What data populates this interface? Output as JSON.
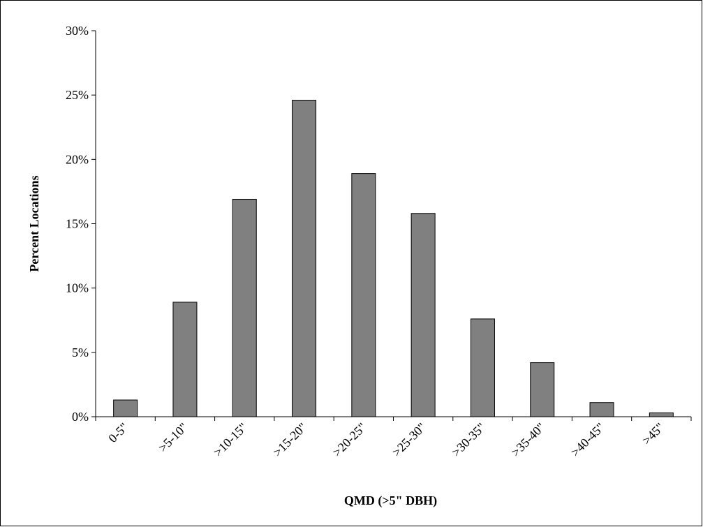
{
  "chart_data": {
    "type": "bar",
    "title": "",
    "xlabel": "QMD (>5\" DBH)",
    "ylabel": "Percent Locations",
    "categories": [
      "0-5\"",
      ">5-10\"",
      ">10-15\"",
      ">15-20\"",
      ">20-25\"",
      ">25-30\"",
      ">30-35\"",
      ">35-40\"",
      ">40-45\"",
      ">45\""
    ],
    "values": [
      1.3,
      8.9,
      16.9,
      24.6,
      18.9,
      15.8,
      7.6,
      4.2,
      1.1,
      0.3
    ],
    "ylim": [
      0,
      30
    ],
    "yticks": [
      "0%",
      "5%",
      "10%",
      "15%",
      "20%",
      "25%",
      "30%"
    ],
    "ytick_values": [
      0,
      5,
      10,
      15,
      20,
      25,
      30
    ],
    "grid": false,
    "legend": "none",
    "colors": {
      "bar": "#808080",
      "bar_border": "#000000",
      "background": "#ffffff"
    }
  }
}
